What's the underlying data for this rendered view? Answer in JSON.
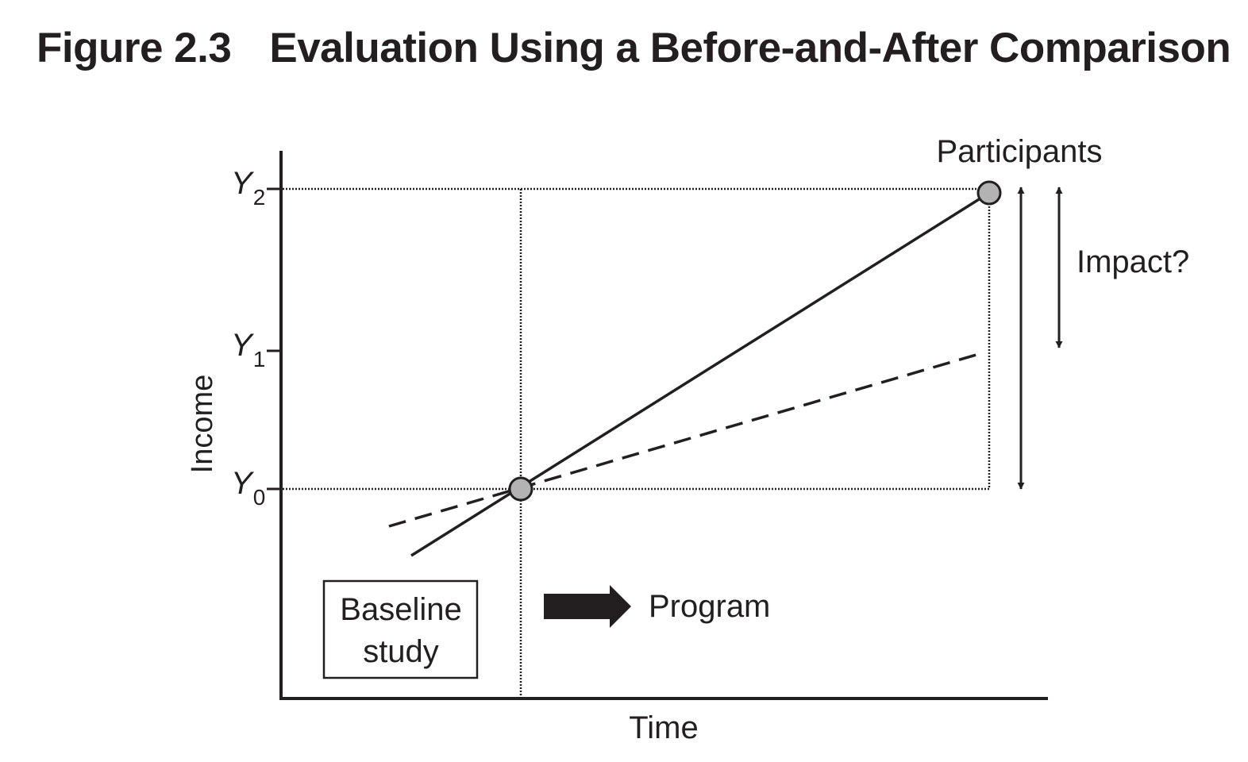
{
  "figure": {
    "number": "Figure 2.3",
    "title": "Evaluation Using a Before-and-After Comparison"
  },
  "axes": {
    "y_label": "Income",
    "x_label": "Time",
    "y_ticks": [
      {
        "symbol": "Y",
        "subscript": "2"
      },
      {
        "symbol": "Y",
        "subscript": "1"
      },
      {
        "symbol": "Y",
        "subscript": "0"
      }
    ]
  },
  "labels": {
    "participants": "Participants",
    "impact": "Impact?",
    "program": "Program",
    "baseline_line1": "Baseline",
    "baseline_line2": "study"
  },
  "colors": {
    "ink": "#231f20",
    "marker_fill": "#b3b3b3"
  }
}
